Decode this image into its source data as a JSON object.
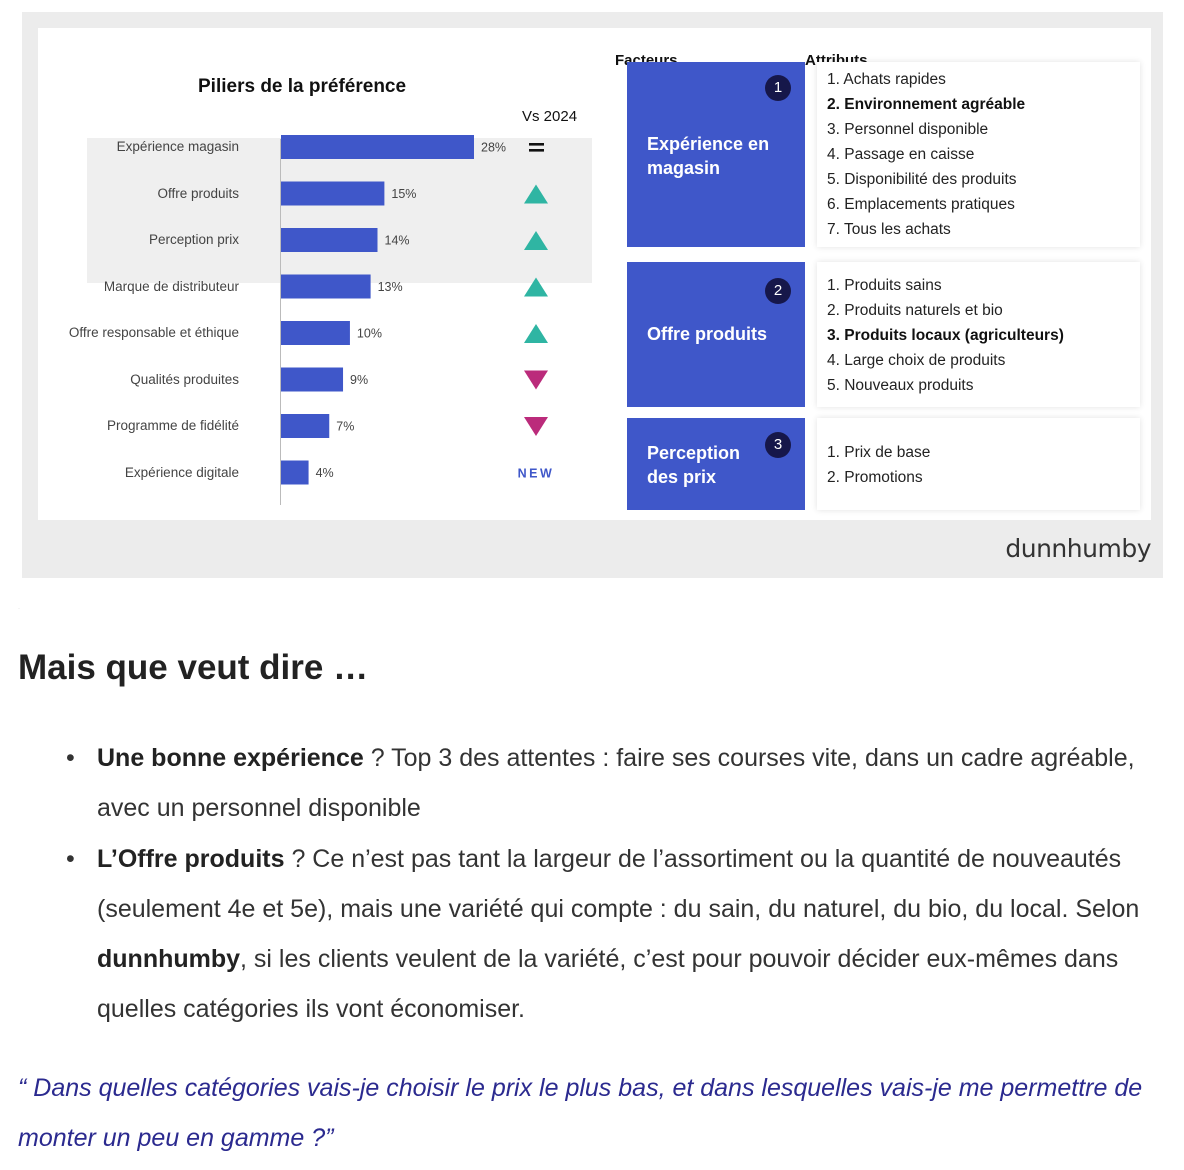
{
  "infographic": {
    "chart_title": "Piliers de la préférence",
    "vs_label": "Vs 2024",
    "brand": "dunnhumby",
    "factors_header": "Facteurs",
    "attributes_header": "Attributs",
    "colors": {
      "bar": "#3f57c9",
      "up": "#2fb5a3",
      "down": "#bb2b7b",
      "new": "#3f57c9",
      "factor_box": "#3f57c9",
      "badge": "#16174a"
    },
    "factors": [
      {
        "number": "1",
        "label": "Expérience en magasin",
        "attributes": [
          {
            "text": "1. Achats rapides",
            "bold": false
          },
          {
            "text": "2. Environnement agréable",
            "bold": true
          },
          {
            "text": "3. Personnel disponible",
            "bold": false
          },
          {
            "text": "4. Passage en caisse",
            "bold": false
          },
          {
            "text": "5. Disponibilité des produits",
            "bold": false
          },
          {
            "text": "6. Emplacements pratiques",
            "bold": false
          },
          {
            "text": "7. Tous les achats",
            "bold": false
          }
        ]
      },
      {
        "number": "2",
        "label": "Offre produits",
        "attributes": [
          {
            "text": "1. Produits sains",
            "bold": false
          },
          {
            "text": "2. Produits naturels et bio",
            "bold": false
          },
          {
            "text": "3. Produits locaux (agriculteurs)",
            "bold": true
          },
          {
            "text": "4. Large choix de produits",
            "bold": false
          },
          {
            "text": "5. Nouveaux produits",
            "bold": false
          }
        ]
      },
      {
        "number": "3",
        "label": "Perception des prix",
        "attributes": [
          {
            "text": "1. Prix de base",
            "bold": false
          },
          {
            "text": "2. Promotions",
            "bold": false
          }
        ]
      }
    ]
  },
  "chart_data": {
    "type": "bar",
    "orientation": "horizontal",
    "title": "Piliers de la préférence",
    "categories": [
      "Expérience magasin",
      "Offre produits",
      "Perception prix",
      "Marque de distributeur",
      "Offre responsable et éthique",
      "Qualités produites",
      "Programme de fidélité",
      "Expérience digitale"
    ],
    "values": [
      28,
      15,
      14,
      13,
      10,
      9,
      7,
      4
    ],
    "value_labels": [
      "28%",
      "15%",
      "14%",
      "13%",
      "10%",
      "9%",
      "7%",
      "4%"
    ],
    "unit": "%",
    "vs_2024": [
      "=",
      "up",
      "up",
      "up",
      "up",
      "down",
      "down",
      "NEW"
    ],
    "highlighted_top": 3,
    "xlim": [
      0,
      30
    ],
    "grid": false,
    "legend": "none"
  },
  "article": {
    "heading": "Mais que veut dire …",
    "bullets": [
      {
        "bold": "Une bonne expérience",
        "text": " ? Top 3 des attentes : faire ses courses vite, dans un cadre agréable, avec un personnel disponible"
      },
      {
        "bold": "L’Offre produits",
        "text": " ? Ce n’est pas tant la largeur de l’assortiment ou la quantité de nouveautés (seulement 4e et 5e), mais une variété qui compte : du sain, du naturel, du bio, du local. Selon ",
        "bold2": "dunnhumby",
        "text2": ", si les clients veulent de la variété, c’est pour pouvoir décider eux-mêmes dans quelles catégories ils vont économiser."
      }
    ],
    "quote": "“ Dans quelles catégories vais-je choisir le prix le plus bas, et dans lesquelles vais-je me permettre de monter un peu en gamme ?”"
  }
}
